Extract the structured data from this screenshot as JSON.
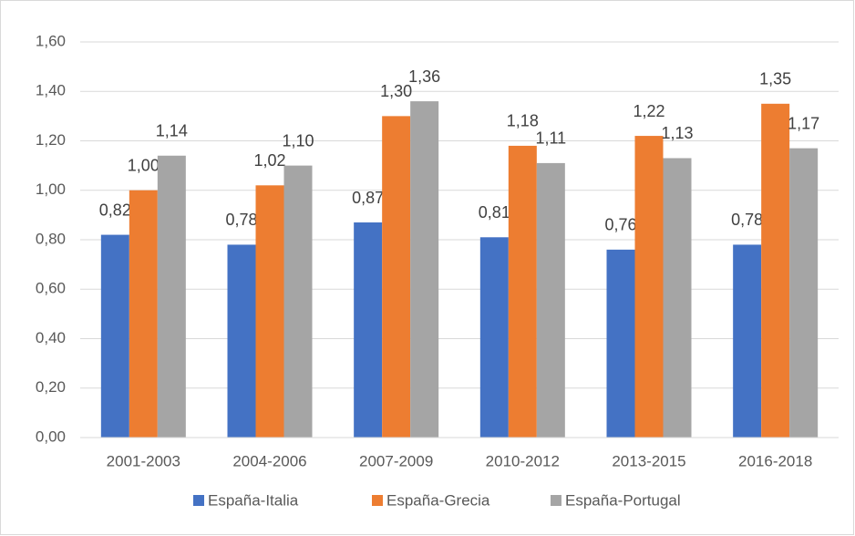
{
  "chart_data": {
    "type": "bar",
    "categories": [
      "2001-2003",
      "2004-2006",
      "2007-2009",
      "2010-2012",
      "2013-2015",
      "2016-2018"
    ],
    "series": [
      {
        "name": "España-Italia",
        "color": "#4472c4",
        "values": [
          0.82,
          0.78,
          0.87,
          0.81,
          0.76,
          0.78
        ],
        "value_labels": [
          "0,82",
          "0,78",
          "0,87",
          "0,81",
          "0,76",
          "0,78"
        ]
      },
      {
        "name": "España-Grecia",
        "color": "#ed7d31",
        "values": [
          1.0,
          1.02,
          1.3,
          1.18,
          1.22,
          1.35
        ],
        "value_labels": [
          "1,00",
          "1,02",
          "1,30",
          "1,18",
          "1,22",
          "1,35"
        ]
      },
      {
        "name": "España-Portugal",
        "color": "#a5a5a5",
        "values": [
          1.14,
          1.1,
          1.36,
          1.11,
          1.13,
          1.17
        ],
        "value_labels": [
          "1,14",
          "1,10",
          "1,36",
          "1,11",
          "1,13",
          "1,17"
        ]
      }
    ],
    "ylim": [
      0,
      1.6
    ],
    "yticks": [
      {
        "value": 0,
        "label": "0,00"
      },
      {
        "value": 0.2,
        "label": "0,20"
      },
      {
        "value": 0.4,
        "label": "0,40"
      },
      {
        "value": 0.6,
        "label": "0,60"
      },
      {
        "value": 0.8,
        "label": "0,80"
      },
      {
        "value": 1.0,
        "label": "1,00"
      },
      {
        "value": 1.2,
        "label": "1,20"
      },
      {
        "value": 1.4,
        "label": "1,40"
      },
      {
        "value": 1.6,
        "label": "1,60"
      }
    ],
    "grid": true,
    "legend": "bottom"
  }
}
